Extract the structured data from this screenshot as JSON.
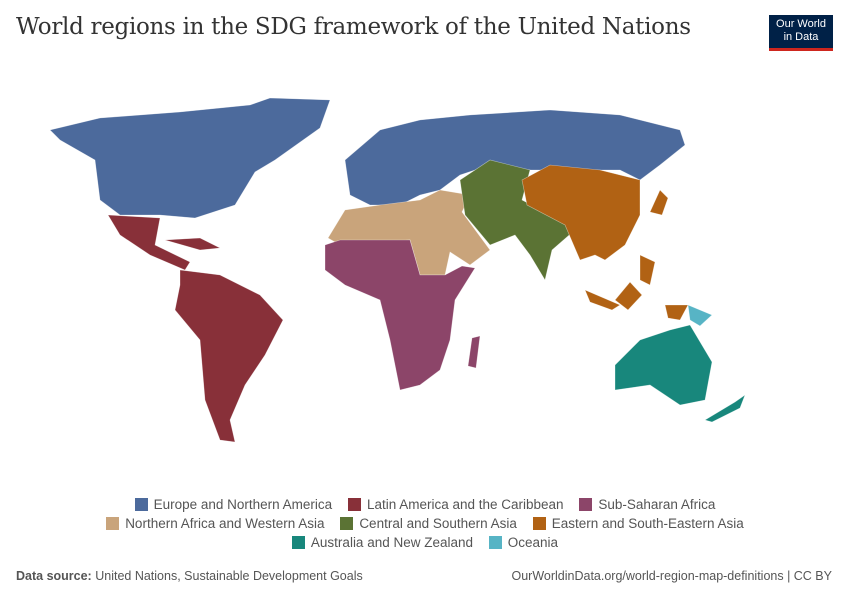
{
  "title": "World regions in the SDG framework of the United Nations",
  "logo": {
    "line1": "Our World",
    "line2": "in Data"
  },
  "regions": [
    {
      "name": "Europe and Northern America",
      "color": "#4c6a9c"
    },
    {
      "name": "Latin America and the Caribbean",
      "color": "#883039"
    },
    {
      "name": "Sub-Saharan Africa",
      "color": "#8c4569"
    },
    {
      "name": "Northern Africa and Western Asia",
      "color": "#c9a47b"
    },
    {
      "name": "Central and Southern Asia",
      "color": "#5b7334"
    },
    {
      "name": "Eastern and South-Eastern Asia",
      "color": "#b16214"
    },
    {
      "name": "Australia and New Zealand",
      "color": "#18877c"
    },
    {
      "name": "Oceania",
      "color": "#57b4c5"
    }
  ],
  "footer": {
    "source_label": "Data source:",
    "source": "United Nations, Sustainable Development Goals",
    "url": "OurWorldinData.org/world-region-map-definitions | CC BY"
  }
}
